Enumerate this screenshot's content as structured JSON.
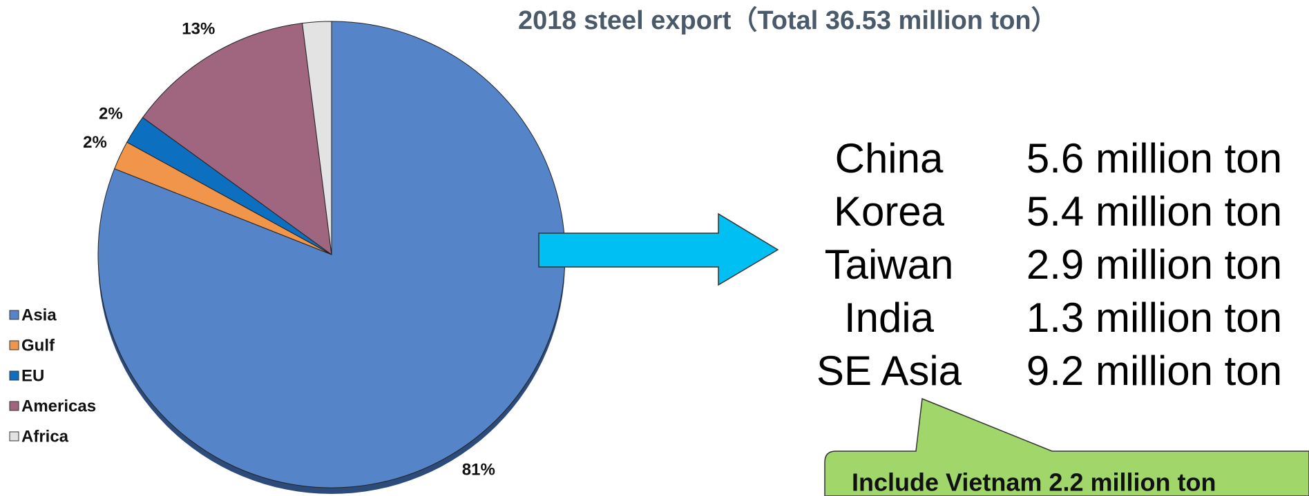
{
  "chart_data": {
    "type": "pie",
    "title": "2018 steel export（Total 36.53 million ton）",
    "categories": [
      "Asia",
      "Gulf",
      "EU",
      "Americas",
      "Africa"
    ],
    "values": [
      81,
      2,
      2,
      13,
      2
    ],
    "value_labels": [
      "81%",
      "2%",
      "2%",
      "13%",
      "2%"
    ],
    "colors": [
      "#5584c8",
      "#f0954a",
      "#0d6fc0",
      "#a0657f",
      "#e3e3e3"
    ],
    "legend": "left"
  },
  "table": {
    "rows": [
      [
        "China",
        "5.6 million ton"
      ],
      [
        "Korea",
        "5.4 million ton"
      ],
      [
        "Taiwan",
        "2.9 million ton"
      ],
      [
        "India",
        "1.3 million ton"
      ],
      [
        "SE Asia",
        "9.2 million ton"
      ]
    ]
  },
  "callout": "Include Vietnam 2.2 million ton"
}
